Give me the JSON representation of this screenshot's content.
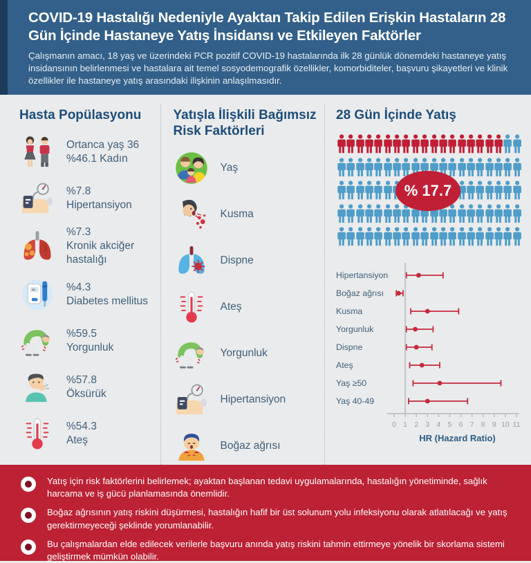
{
  "header": {
    "title": "COVID-19 Hastalığı Nedeniyle Ayaktan Takip Edilen Erişkin Hastaların 28 Gün İçinde Hastaneye Yatış İnsidansı ve Etkileyen Faktörler",
    "subtitle": "Çalışmanın amacı, 18 yaş ve üzerindeki PCR pozitif COVID-19 hastalarında ilk 28 günlük dönemdeki hastaneye yatış insidansının belirlenmesi ve hastalara ait temel sosyodemografik özellikler, komorbiditeler, başvuru şikayetleri ve klinik özellikler ile hastaneye yatış arasındaki ilişkinin anlaşılmasıdır."
  },
  "columns": {
    "population": {
      "title": "Hasta Popülasyonu",
      "items": [
        {
          "icon": "couple-icon",
          "line1": "Ortanca yaş 36",
          "line2": "%46.1 Kadın"
        },
        {
          "icon": "blood-pressure-icon",
          "line1": "%7.8",
          "line2": "Hipertansiyon"
        },
        {
          "icon": "lung-disease-icon",
          "line1": "%7.3",
          "line2": "Kronik akciğer hastalığı"
        },
        {
          "icon": "glucometer-icon",
          "line1": "%4.3",
          "line2": "Diabetes mellitus"
        },
        {
          "icon": "fatigue-icon",
          "line1": "%59.5",
          "line2": "Yorgunluk"
        },
        {
          "icon": "cough-icon",
          "line1": "%57.8",
          "line2": "Öksürük"
        },
        {
          "icon": "thermometer-icon",
          "line1": "%54.3",
          "line2": "Ateş"
        }
      ]
    },
    "risk_factors": {
      "title": "Yatışla İlişkili Bağımsız Risk Faktörleri",
      "items": [
        {
          "icon": "family-icon",
          "label": "Yaş"
        },
        {
          "icon": "vomiting-icon",
          "label": "Kusma"
        },
        {
          "icon": "dyspnea-lungs-icon",
          "label": "Dispne"
        },
        {
          "icon": "thermometer-icon",
          "label": "Ateş"
        },
        {
          "icon": "fatigue-icon",
          "label": "Yorgunluk"
        },
        {
          "icon": "blood-pressure-icon",
          "label": "Hipertansiyon"
        },
        {
          "icon": "sore-throat-icon",
          "label": "Boğaz ağrısı"
        }
      ]
    },
    "admission": {
      "title": "28 Gün İçinde Yatış",
      "badge_label": "% 17.7"
    }
  },
  "chart_data": [
    {
      "type": "pictogram",
      "title": "28 Gün İçinde Yatış",
      "rows": 5,
      "cols": 20,
      "total": 100,
      "highlighted": 18,
      "value_label": "% 17.7",
      "highlight_color": "#c01f35",
      "base_color": "#4f9dc8",
      "note": "18 of 100 person icons red = hospitalization incidence %17.7 within 28 days"
    },
    {
      "type": "scatter",
      "subtype": "forest-plot",
      "categories": [
        "Hipertansiyon",
        "Boğaz ağrısı",
        "Kusma",
        "Yorgunluk",
        "Dispne",
        "Ateş",
        "Yaş ≥50",
        "Yaş 40-49"
      ],
      "values": [
        2.2,
        0.4,
        3.0,
        1.9,
        2.0,
        2.5,
        4.1,
        3.0
      ],
      "ci_low": [
        1.1,
        0.2,
        1.5,
        1.1,
        1.1,
        1.4,
        1.7,
        1.3
      ],
      "ci_high": [
        4.4,
        0.8,
        5.8,
        3.5,
        3.4,
        4.1,
        9.6,
        6.6
      ],
      "xlabel": "HR (Hazard Ratio)",
      "xlim": [
        0,
        11
      ],
      "xticks": [
        0,
        1,
        2,
        3,
        4,
        5,
        6,
        7,
        8,
        9,
        10,
        11
      ],
      "reference_line": 1,
      "point_color": "#c5293d",
      "grid": false,
      "legend": "none"
    }
  ],
  "footer": {
    "bullets": [
      "Yatış için risk faktörlerini belirlemek; ayaktan başlanan tedavi uygulamalarında, hastalığın yönetiminde, sağlık harcama ve iş gücü planlamasında önemlidir.",
      "Boğaz ağrısının yatış riskini düşürmesi, hastalığın hafif bir üst solunum yolu infeksiyonu olarak atlatılacağı ve yatış gerektirmeyeceği şeklinde yorumlanabilir.",
      "Bu çalışmalardan elde edilecek verilerle başvuru anında yatış riskini tahmin ettirmeye yönelik bir skorlama sistemi geliştirmek mümkün olabilir."
    ]
  },
  "colors": {
    "header_bg": "#33608a",
    "header_stripe": "#1d3c5a",
    "page_bg": "#eaebec",
    "section_title": "#1d4d7b",
    "item_text": "#40607c",
    "footer_bg": "#bc2134",
    "accent_red": "#c01f35",
    "pictogram_blue": "#4f9dc8",
    "axis_text": "#9aa0a5"
  }
}
